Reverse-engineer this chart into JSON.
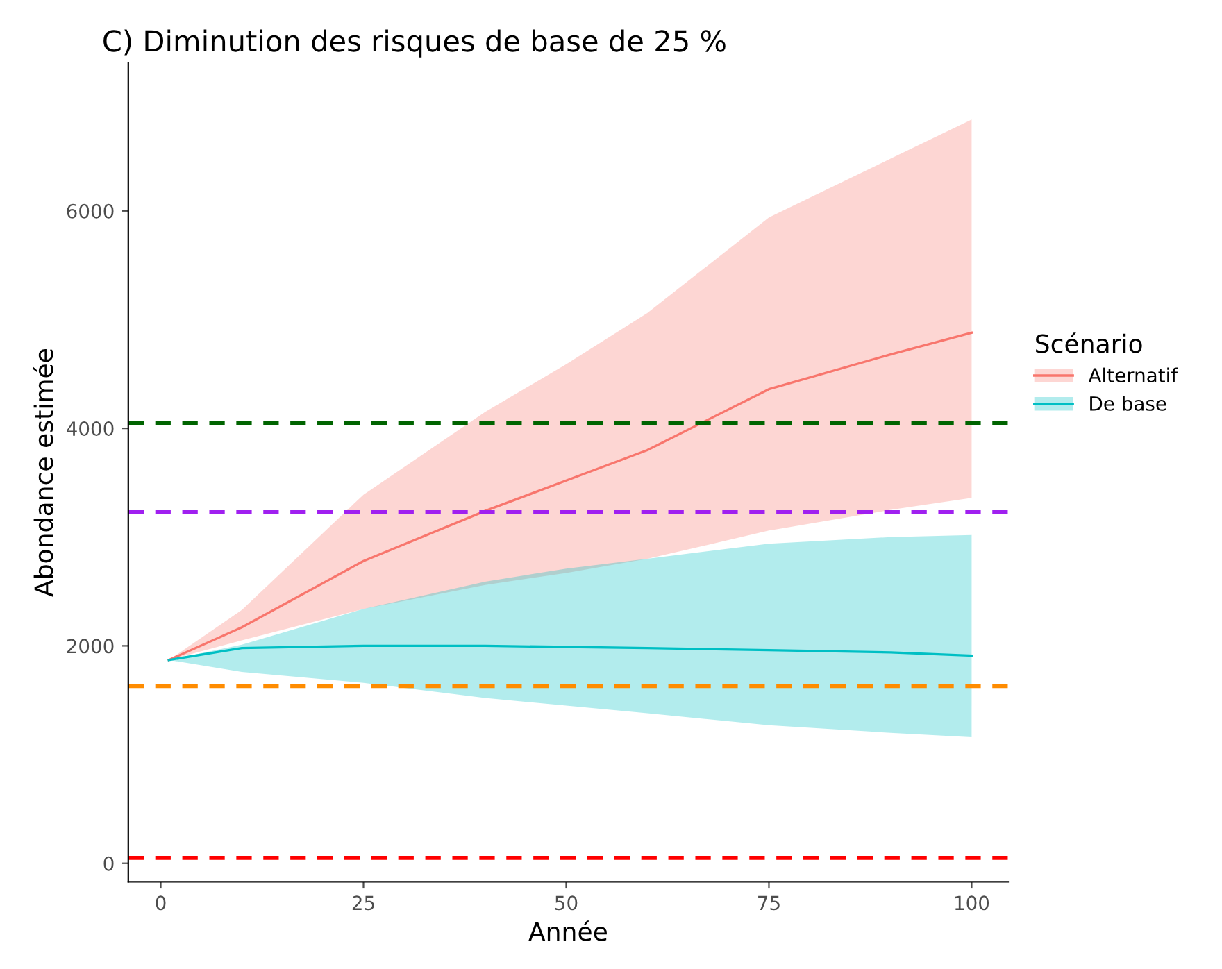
{
  "chart_data": {
    "type": "line",
    "title": "C) Diminution des risques de base de 25 %",
    "xlabel": "Année",
    "ylabel": "Abondance estimée",
    "legend_title": "Scénario",
    "x": [
      1,
      10,
      25,
      40,
      50,
      60,
      75,
      90,
      100
    ],
    "series": [
      {
        "name": "Alternatif",
        "color": "#f8766d",
        "values": [
          1870,
          2170,
          2780,
          3240,
          3520,
          3800,
          4360,
          4680,
          4880
        ],
        "lower": [
          1870,
          2050,
          2340,
          2560,
          2670,
          2800,
          3060,
          3250,
          3360
        ],
        "upper": [
          1870,
          2330,
          3390,
          4150,
          4590,
          5060,
          5940,
          6480,
          6840
        ]
      },
      {
        "name": "De base",
        "color": "#00bfc4",
        "values": [
          1870,
          1980,
          2000,
          2000,
          1990,
          1980,
          1960,
          1940,
          1910
        ],
        "lower": [
          1870,
          1760,
          1660,
          1520,
          1450,
          1380,
          1270,
          1200,
          1160
        ],
        "upper": [
          1870,
          2010,
          2340,
          2590,
          2710,
          2800,
          2940,
          3000,
          3020
        ]
      }
    ],
    "xlim": [
      -4,
      104.5
    ],
    "ylim": [
      -170,
      7360
    ],
    "xticks": [
      0,
      25,
      50,
      75,
      100
    ],
    "yticks": [
      0,
      2000,
      4000,
      6000
    ],
    "ref_lines": [
      {
        "axis": "y",
        "value": 4050,
        "color": "#006400",
        "line_style": "dashed"
      },
      {
        "axis": "y",
        "value": 3230,
        "color": "#a020f0",
        "line_style": "dashed"
      },
      {
        "axis": "y",
        "value": 1630,
        "color": "#ff8c00",
        "line_style": "dashed"
      },
      {
        "axis": "y",
        "value": 50,
        "color": "#ff0000",
        "line_style": "dashed"
      }
    ],
    "grid": false,
    "legend": "right",
    "line_style": "solid"
  }
}
